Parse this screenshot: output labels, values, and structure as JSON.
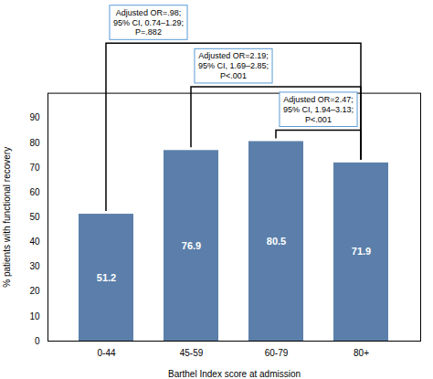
{
  "chart_data": {
    "type": "bar",
    "categories": [
      "0-44",
      "45-59",
      "60-79",
      "80+"
    ],
    "values": [
      51.2,
      76.9,
      80.5,
      71.9
    ],
    "color": "#5b7faa",
    "xlabel": "Barthel Index score at admission",
    "ylabel": "% patients with functional recovery",
    "ylim": [
      0,
      100
    ],
    "yticks": [
      0,
      10,
      20,
      30,
      40,
      50,
      60,
      70,
      80,
      90
    ],
    "data_labels": true,
    "annotations": [
      {
        "text": "Adjusted OR=.98;\n95% CI, 0.74–1.29;\nP=.882",
        "from": "0-44",
        "to": "80+",
        "color": "#5b9bd5"
      },
      {
        "text": "Adjusted OR=2.19;\n95% CI, 1.69–2.85;\nP<.001",
        "from": "45-59",
        "to": "80+",
        "color": "#5b9bd5"
      },
      {
        "text": "Adjusted OR=2.47;\n95% CI, 1.94–3.13;\nP<.001",
        "from": "60-79",
        "to": "80+",
        "color": "#5b9bd5"
      }
    ]
  }
}
